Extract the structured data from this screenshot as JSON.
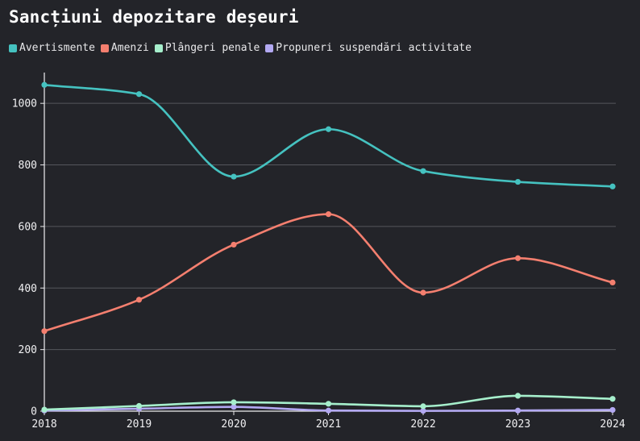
{
  "chart_data": {
    "type": "line",
    "title": "Sancțiuni depozitare deșeuri",
    "x": [
      "2018",
      "2019",
      "2020",
      "2021",
      "2022",
      "2023",
      "2024"
    ],
    "ylim": [
      0,
      1100
    ],
    "yticks": [
      0,
      200,
      400,
      600,
      800,
      1000
    ],
    "grid": true,
    "legend_position": "top-left",
    "series": [
      {
        "name": "Avertismente",
        "color": "#45c2c0",
        "values": [
          1060,
          1030,
          762,
          916,
          780,
          745,
          730
        ]
      },
      {
        "name": "Amenzi",
        "color": "#f47f6f",
        "values": [
          260,
          362,
          541,
          640,
          385,
          497,
          418
        ]
      },
      {
        "name": "Plângeri penale",
        "color": "#a6efcc",
        "values": [
          5,
          17,
          29,
          24,
          16,
          50,
          40
        ]
      },
      {
        "name": "Propuneri suspendări activitate",
        "color": "#b3a9f2",
        "values": [
          2,
          8,
          14,
          2,
          1,
          2,
          4
        ]
      }
    ]
  }
}
